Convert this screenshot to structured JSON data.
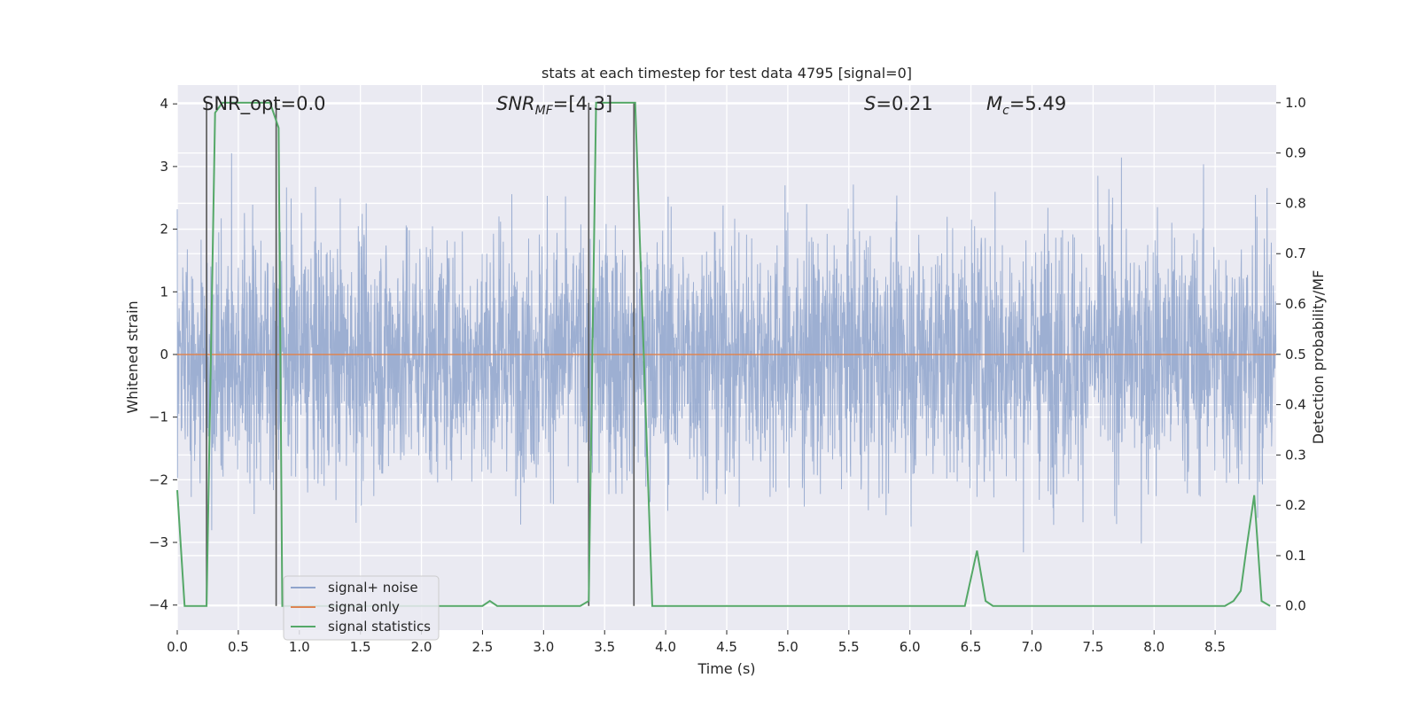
{
  "chart_data": {
    "type": "line",
    "title": "stats at each timestep for test data 4795 [signal=0]",
    "xlabel": "Time (s)",
    "ylabel": "Whitened strain",
    "y2label": "Detection probability/MF",
    "xlim": [
      0.0,
      9.0
    ],
    "ylim": [
      -4.4,
      4.3
    ],
    "y2lim": [
      -0.048,
      1.035
    ],
    "xticks": [
      0.0,
      0.5,
      1.0,
      1.5,
      2.0,
      2.5,
      3.0,
      3.5,
      4.0,
      4.5,
      5.0,
      5.5,
      6.0,
      6.5,
      7.0,
      7.5,
      8.0,
      8.5
    ],
    "xtick_labels": [
      "0.0",
      "0.5",
      "1.0",
      "1.5",
      "2.0",
      "2.5",
      "3.0",
      "3.5",
      "4.0",
      "4.5",
      "5.0",
      "5.5",
      "6.0",
      "6.5",
      "7.0",
      "7.5",
      "8.0",
      "8.5"
    ],
    "yticks": [
      -4,
      -3,
      -2,
      -1,
      0,
      1,
      2,
      3,
      4
    ],
    "ytick_labels": [
      "−4",
      "−3",
      "−2",
      "−1",
      "0",
      "1",
      "2",
      "3",
      "4"
    ],
    "y2ticks": [
      0.0,
      0.1,
      0.2,
      0.3,
      0.4,
      0.5,
      0.6,
      0.7,
      0.8,
      0.9,
      1.0
    ],
    "y2tick_labels": [
      "0.0",
      "0.1",
      "0.2",
      "0.3",
      "0.4",
      "0.5",
      "0.6",
      "0.7",
      "0.8",
      "0.9",
      "1.0"
    ],
    "grid": true,
    "legend_position": "lower-left",
    "annotations": {
      "snr_opt": "SNR_opt=0.0",
      "snr_mf_main": "SNR",
      "snr_mf_sub": "MF",
      "snr_mf_value": "=[4.3]",
      "s_label": "S",
      "s_value": "=0.21",
      "mc_label": "M",
      "mc_sub": "c",
      "mc_value": "=5.49"
    },
    "vertical_markers": [
      0.24,
      0.81,
      3.37,
      3.74
    ],
    "series": [
      {
        "name": "signal+ noise",
        "color": "#8fa4cc",
        "axis": "left",
        "kind": "noise",
        "sample_rate_hz": 400,
        "typical_range": [
          -2.0,
          2.0
        ],
        "extreme_range": [
          -3.7,
          3.9
        ]
      },
      {
        "name": "signal only",
        "color": "#dd8452",
        "axis": "left",
        "x": [
          0.0,
          9.0
        ],
        "y": [
          0.0,
          0.0
        ]
      },
      {
        "name": "signal statistics",
        "color": "#55a868",
        "axis": "right",
        "x": [
          0.0,
          0.06,
          0.24,
          0.31,
          0.37,
          0.76,
          0.83,
          0.86,
          2.5,
          2.56,
          2.62,
          3.3,
          3.37,
          3.43,
          3.75,
          3.89,
          6.45,
          6.55,
          6.62,
          6.68,
          8.58,
          8.65,
          8.71,
          8.76,
          8.82,
          8.88,
          8.95
        ],
        "y": [
          0.23,
          0.0,
          0.0,
          0.98,
          1.0,
          1.0,
          0.95,
          0.0,
          0.0,
          0.01,
          0.0,
          0.0,
          0.01,
          1.0,
          1.0,
          0.0,
          0.0,
          0.11,
          0.01,
          0.0,
          0.0,
          0.01,
          0.03,
          0.12,
          0.22,
          0.01,
          0.0
        ]
      }
    ]
  }
}
